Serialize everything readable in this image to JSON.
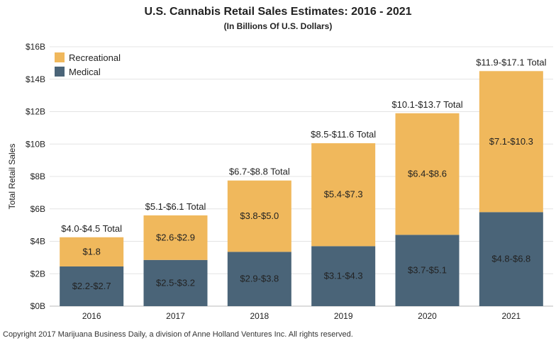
{
  "chart_data": {
    "type": "bar",
    "stacked": true,
    "title": "U.S. Cannabis Retail Sales Estimates: 2016 - 2021",
    "subtitle": "(In Billions Of U.S. Dollars)",
    "xlabel": "",
    "ylabel": "Total Retail Sales",
    "ylim": [
      0,
      16
    ],
    "yticks": [
      0,
      2,
      4,
      6,
      8,
      10,
      12,
      14,
      16
    ],
    "ytick_labels": [
      "$0B",
      "$2B",
      "$4B",
      "$6B",
      "$8B",
      "$10B",
      "$12B",
      "$14B",
      "$16B"
    ],
    "grid": true,
    "legend_position": "top-left",
    "categories": [
      "2016",
      "2017",
      "2018",
      "2019",
      "2020",
      "2021"
    ],
    "series": [
      {
        "name": "Medical",
        "color": "#4a6478",
        "values": [
          2.45,
          2.85,
          3.35,
          3.7,
          4.4,
          5.8
        ],
        "labels": [
          "$2.2-$2.7",
          "$2.5-$3.2",
          "$2.9-$3.8",
          "$3.1-$4.3",
          "$3.7-$5.1",
          "$4.8-$6.8"
        ]
      },
      {
        "name": "Recreational",
        "color": "#f0b85c",
        "values": [
          1.8,
          2.75,
          4.4,
          6.35,
          7.5,
          8.7
        ],
        "labels": [
          "$1.8",
          "$2.6-$2.9",
          "$3.8-$5.0",
          "$5.4-$7.3",
          "$6.4-$8.6",
          "$7.1-$10.3"
        ]
      }
    ],
    "totals": [
      "$4.0-$4.5 Total",
      "$5.1-$6.1 Total",
      "$6.7-$8.8 Total",
      "$8.5-$11.6 Total",
      "$10.1-$13.7 Total",
      "$11.9-$17.1 Total"
    ]
  },
  "footer": "Copyright 2017 Marijuana Business Daily, a division of Anne Holland Ventures Inc. All rights reserved."
}
